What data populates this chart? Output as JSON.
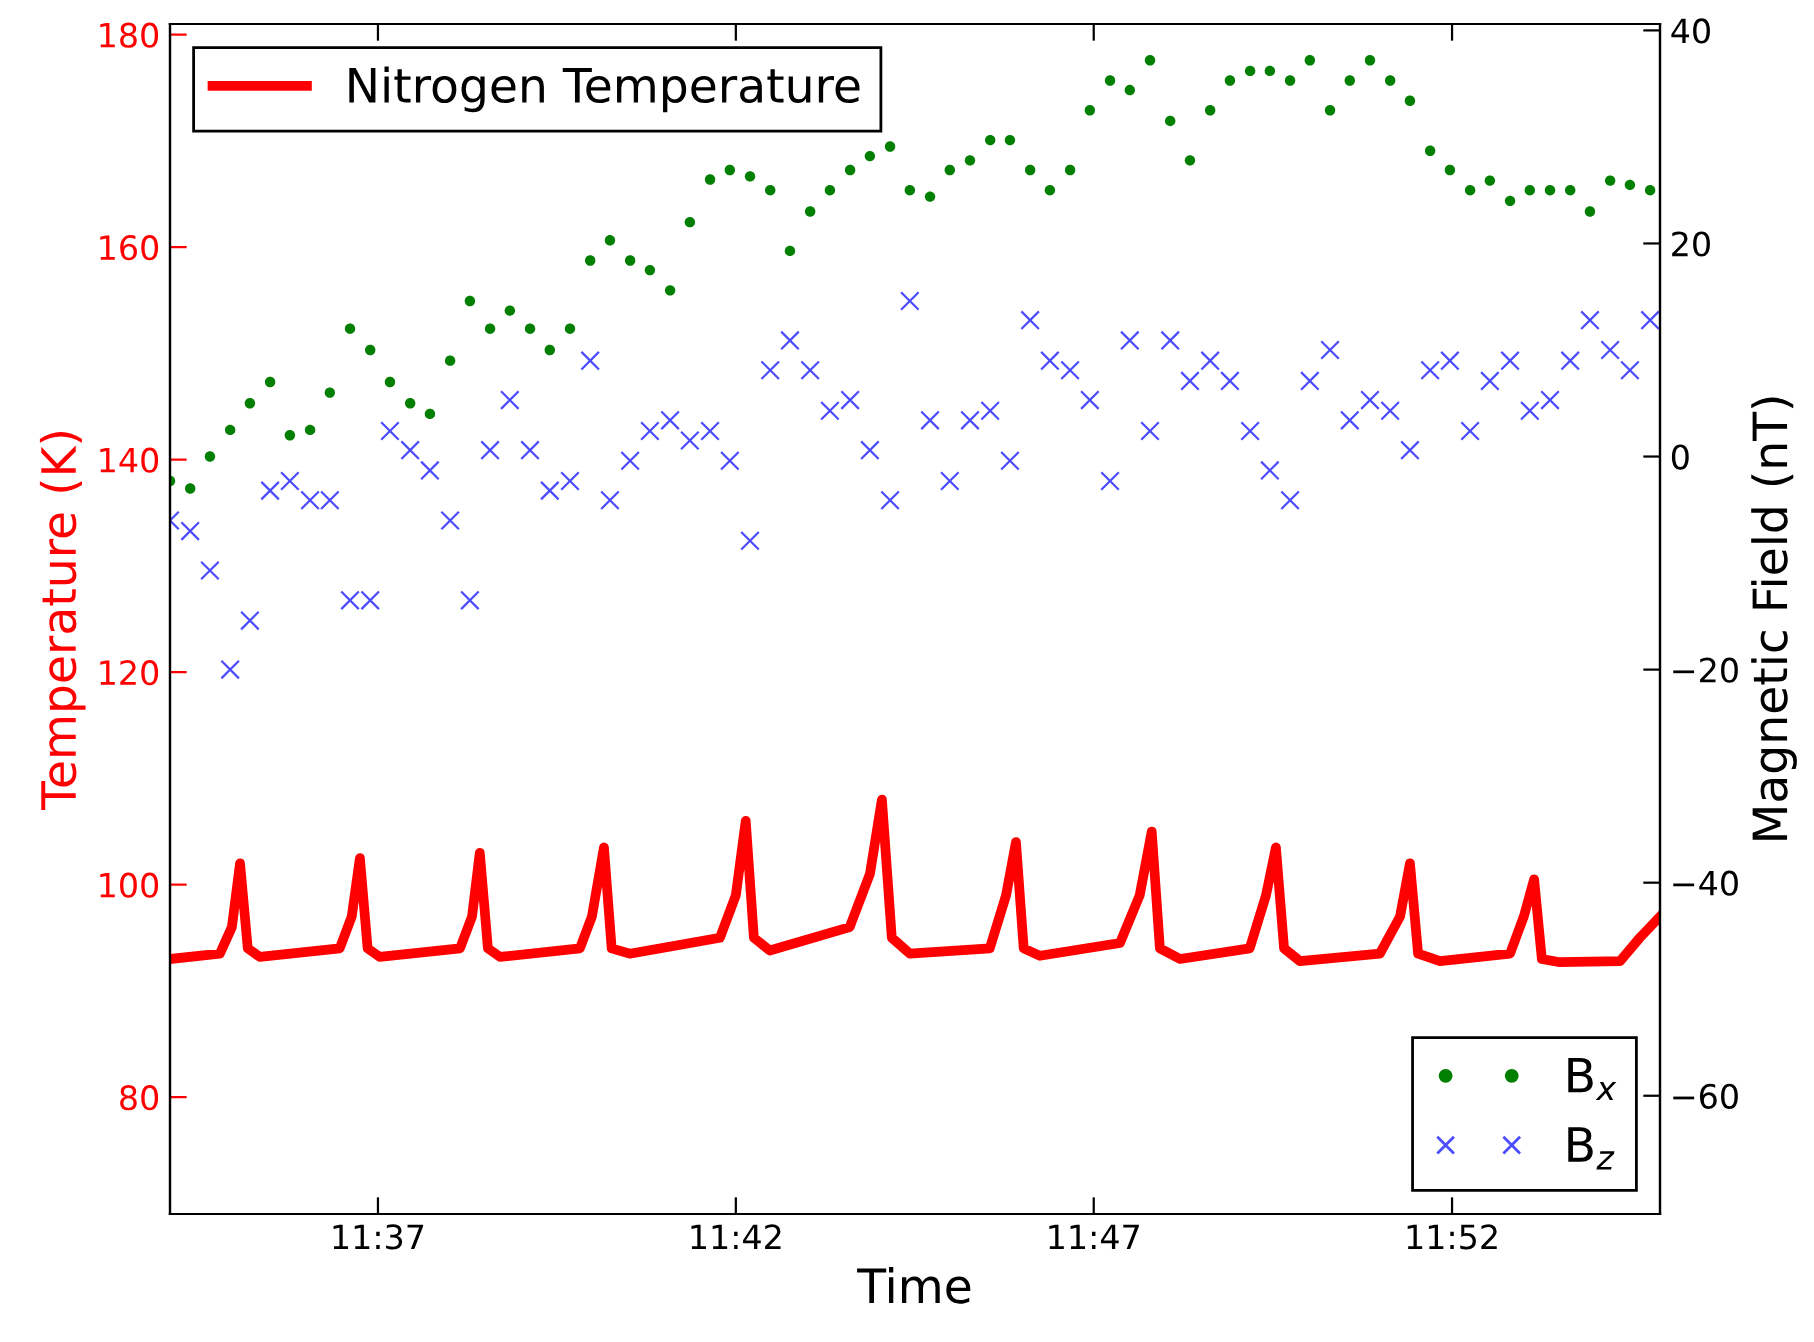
{
  "chart_data": {
    "type": "line",
    "xlabel": "Time",
    "ylabel": "Temperature (K)",
    "y2label": "Magnetic Field (nT)",
    "xlim": [
      11.5683,
      11.9151
    ],
    "xticks": [
      {
        "value": 11.6167,
        "label": "11:37"
      },
      {
        "value": 11.7,
        "label": "11:42"
      },
      {
        "value": 11.7833,
        "label": "11:47"
      },
      {
        "value": 11.8667,
        "label": "11:52"
      }
    ],
    "ylim": [
      69,
      181
    ],
    "yticks": [
      80,
      100,
      120,
      140,
      160,
      180
    ],
    "y2lim": [
      -71.1,
      40.6
    ],
    "y2ticks": [
      -60,
      -40,
      -20,
      0,
      20,
      40
    ],
    "legend": "top left",
    "grid": false,
    "x": [
      11.5683,
      11.573,
      11.5776,
      11.5823,
      11.5869,
      11.5916,
      11.5962,
      11.6009,
      11.6055,
      11.6102,
      11.6149,
      11.6195,
      11.6242,
      11.6288,
      11.6335,
      11.6381,
      11.6428,
      11.6474,
      11.6521,
      11.6567,
      11.6614,
      11.6661,
      11.6707,
      11.6754,
      11.68,
      11.6847,
      11.6893,
      11.694,
      11.6986,
      11.7033,
      11.708,
      11.7126,
      11.7173,
      11.7219,
      11.7266,
      11.7312,
      11.7359,
      11.7405,
      11.7452,
      11.7498,
      11.7545,
      11.7592,
      11.7638,
      11.7685,
      11.7731,
      11.7778,
      11.7824,
      11.7871,
      11.7917,
      11.7964,
      11.8011,
      11.8057,
      11.8104,
      11.815,
      11.8197,
      11.8243,
      11.829,
      11.8336,
      11.8383,
      11.8429,
      11.8476,
      11.8523,
      11.8569,
      11.8616,
      11.8662,
      11.8709,
      11.8755,
      11.8802,
      11.8848,
      11.8895,
      11.8942,
      11.8988,
      11.9035,
      11.9081,
      11.9128
    ],
    "series": [
      {
        "name": "Nitrogen Temperature",
        "color": "#ff0000",
        "marker": "none",
        "line_style": "solid",
        "x": [
          11.5683,
          11.5799,
          11.5827,
          11.5846,
          11.5864,
          11.5892,
          11.6078,
          11.6106,
          11.6125,
          11.6143,
          11.6171,
          11.6358,
          11.6386,
          11.6404,
          11.6423,
          11.6451,
          11.6637,
          11.6665,
          11.6693,
          11.6711,
          11.6753,
          11.6963,
          11.7,
          11.7023,
          11.7042,
          11.7079,
          11.7265,
          11.7312,
          11.734,
          11.7363,
          11.7405,
          11.7591,
          11.7629,
          11.7652,
          11.767,
          11.7708,
          11.7894,
          11.794,
          11.7968,
          11.7987,
          11.8034,
          11.8196,
          11.8234,
          11.8257,
          11.8276,
          11.8313,
          11.8499,
          11.8546,
          11.8569,
          11.8588,
          11.8639,
          11.8802,
          11.8834,
          11.8858,
          11.8876,
          11.8918,
          11.9058,
          11.9104,
          11.9151
        ],
        "values": [
          93,
          93.5,
          96,
          102,
          94,
          93.2,
          94,
          97,
          102.5,
          94,
          93.2,
          94,
          97,
          103,
          94,
          93.2,
          94,
          97,
          103.5,
          94,
          93.5,
          95,
          99,
          106,
          95,
          93.8,
          96,
          101,
          108,
          95,
          93.5,
          94,
          99,
          104,
          94,
          93.3,
          94.5,
          99,
          105,
          94,
          93,
          94,
          99,
          103.5,
          94,
          92.8,
          93.5,
          97,
          102,
          93.5,
          92.8,
          93.5,
          97,
          100.5,
          93,
          92.7,
          92.8,
          95,
          97
        ]
      },
      {
        "name": "B$_{x}$",
        "type": "scatter",
        "axis": "y2",
        "color": "#007f00",
        "marker": "circle",
        "values": [
          -2.3,
          -3,
          0,
          2.5,
          5,
          7,
          2,
          2.5,
          6,
          12,
          10,
          7,
          5,
          4,
          9,
          14.6,
          12,
          13.7,
          12,
          10,
          12,
          18.4,
          20.3,
          18.4,
          17.5,
          15.6,
          22,
          26,
          26.9,
          26.3,
          25,
          19.3,
          23,
          25,
          26.9,
          28.2,
          29.1,
          25,
          24.4,
          26.9,
          27.8,
          29.7,
          29.7,
          26.9,
          25,
          26.9,
          32.5,
          35.3,
          34.4,
          37.2,
          31.5,
          27.8,
          32.5,
          35.3,
          36.2,
          36.2,
          35.3,
          37.2,
          32.5,
          35.3,
          37.2,
          35.3,
          33.4,
          28.7,
          26.9,
          25,
          25.9,
          24,
          25,
          25,
          25,
          23,
          25.9,
          25.5,
          25
        ]
      },
      {
        "name": "B$_{z}$",
        "type": "scatter",
        "axis": "y2",
        "color": "#0000ff",
        "marker": "cross",
        "values": [
          -6,
          -7,
          -10.7,
          -20,
          -15.4,
          -3.2,
          -2.3,
          -4.1,
          -4.1,
          -13.5,
          -13.5,
          2.4,
          0.6,
          -1.3,
          -6,
          -13.5,
          0.6,
          5.3,
          0.6,
          -3.2,
          -2.3,
          9,
          -4.1,
          -0.4,
          2.4,
          3.4,
          1.5,
          2.4,
          -0.4,
          -7.9,
          8.1,
          10.9,
          8.1,
          4.3,
          5.3,
          0.6,
          -4.1,
          14.6,
          3.4,
          -2.3,
          3.4,
          4.3,
          -0.4,
          12.8,
          9,
          8.1,
          5.3,
          -2.3,
          10.9,
          2.4,
          10.9,
          7.1,
          9,
          7.1,
          2.4,
          -1.3,
          -4.1,
          7.1,
          10,
          3.4,
          5.3,
          4.3,
          0.6,
          8.1,
          9,
          2.4,
          7.1,
          9,
          4.3,
          5.3,
          9,
          12.8,
          10,
          8.1,
          12.8
        ]
      }
    ]
  }
}
